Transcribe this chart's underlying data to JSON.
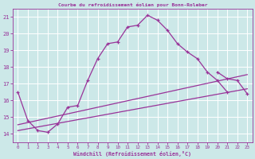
{
  "title": "Courbe du refroidissement éolien pour Bonn-Roleber",
  "xlabel": "Windchill (Refroidissement éolien,°C)",
  "background_color": "#cce8e8",
  "grid_color": "#ffffff",
  "line_color": "#993399",
  "xlim": [
    -0.5,
    23.5
  ],
  "ylim": [
    13.5,
    21.5
  ],
  "yticks": [
    14,
    15,
    16,
    17,
    18,
    19,
    20,
    21
  ],
  "xticks": [
    0,
    1,
    2,
    3,
    4,
    5,
    6,
    7,
    8,
    9,
    10,
    11,
    12,
    13,
    14,
    15,
    16,
    17,
    18,
    19,
    20,
    21,
    22,
    23
  ],
  "line1_x": [
    0,
    1,
    2,
    3,
    4,
    5,
    6,
    7,
    8,
    9,
    10,
    11,
    12,
    13,
    14,
    15,
    16,
    17,
    18,
    19,
    20,
    21
  ],
  "line1_y": [
    16.5,
    14.8,
    14.2,
    14.1,
    14.6,
    15.6,
    15.7,
    17.2,
    18.5,
    19.4,
    19.5,
    20.4,
    20.5,
    21.1,
    20.8,
    20.2,
    19.4,
    18.9,
    18.5,
    17.7,
    17.2,
    16.5
  ],
  "line2_x": [
    20,
    21,
    22,
    23
  ],
  "line2_y": [
    17.7,
    17.3,
    17.2,
    16.4
  ],
  "line3_x": [
    0,
    23
  ],
  "line3_y": [
    14.2,
    16.7
  ],
  "line4_x": [
    0,
    23
  ],
  "line4_y": [
    14.55,
    17.55
  ]
}
